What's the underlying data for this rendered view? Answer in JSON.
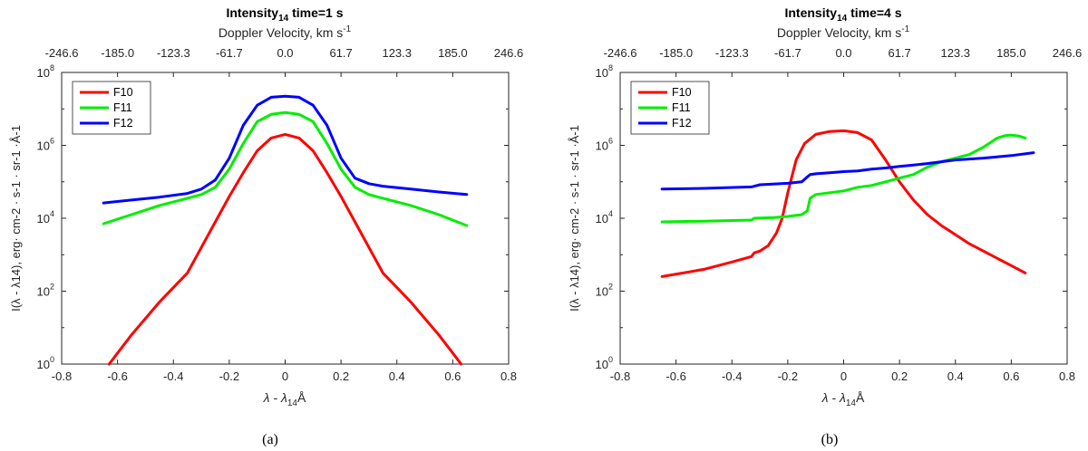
{
  "chart_data": [
    {
      "type": "line",
      "id": "a",
      "title_main": "Intensity",
      "title_sub": "14",
      "title_rest": " time=1 s",
      "top_axis_label": "Doppler Velocity, km s",
      "top_axis_label_exp": "-1",
      "top_ticks": [
        "-246.6",
        "-185.0",
        "-123.3",
        "-61.7",
        "0.0",
        "61.7",
        "123.3",
        "185.0",
        "246.6"
      ],
      "xlabel": "λ - λ",
      "xlabel_sub": "14",
      "xlabel_unit": "Å",
      "ylabel": "I(λ - λ14), erg· cm-2 · s-1 · sr-1 ·Å-1",
      "xlim": [
        -0.8,
        0.8
      ],
      "xticks": [
        "-0.8",
        "-0.6",
        "-0.4",
        "-0.2",
        "0",
        "0.2",
        "0.4",
        "0.6",
        "0.8"
      ],
      "ylim_log10": [
        0,
        8
      ],
      "yticks": [
        "10^0",
        "10^2",
        "10^4",
        "10^6",
        "10^8"
      ],
      "legend": "top-left",
      "caption": "(a)",
      "series": [
        {
          "name": "F10",
          "color": "#ff0000",
          "x": [
            -0.63,
            -0.55,
            -0.45,
            -0.35,
            -0.3,
            -0.25,
            -0.2,
            -0.15,
            -0.1,
            -0.05,
            0,
            0.05,
            0.1,
            0.15,
            0.2,
            0.25,
            0.3,
            0.35,
            0.45,
            0.55,
            0.63
          ],
          "y": [
            0,
            0.8,
            1.7,
            2.5,
            3.2,
            3.9,
            4.6,
            5.25,
            5.85,
            6.2,
            6.3,
            6.2,
            5.85,
            5.25,
            4.6,
            3.9,
            3.2,
            2.5,
            1.7,
            0.8,
            0
          ]
        },
        {
          "name": "F11",
          "color": "#00ee00",
          "x": [
            -0.65,
            -0.55,
            -0.45,
            -0.35,
            -0.3,
            -0.25,
            -0.2,
            -0.15,
            -0.1,
            -0.05,
            0,
            0.05,
            0.1,
            0.15,
            0.2,
            0.25,
            0.3,
            0.35,
            0.45,
            0.55,
            0.65
          ],
          "y": [
            3.85,
            4.1,
            4.35,
            4.55,
            4.65,
            4.85,
            5.35,
            6.05,
            6.65,
            6.85,
            6.9,
            6.85,
            6.65,
            6.05,
            5.35,
            4.85,
            4.65,
            4.55,
            4.35,
            4.1,
            3.8
          ]
        },
        {
          "name": "F12",
          "color": "#0000ff",
          "x": [
            -0.65,
            -0.55,
            -0.45,
            -0.35,
            -0.3,
            -0.25,
            -0.2,
            -0.15,
            -0.1,
            -0.05,
            0,
            0.05,
            0.1,
            0.15,
            0.2,
            0.25,
            0.3,
            0.35,
            0.45,
            0.55,
            0.65
          ],
          "y": [
            4.42,
            4.5,
            4.58,
            4.68,
            4.8,
            5.05,
            5.65,
            6.55,
            7.1,
            7.32,
            7.35,
            7.32,
            7.1,
            6.55,
            5.65,
            5.1,
            4.95,
            4.88,
            4.8,
            4.72,
            4.65
          ]
        }
      ]
    },
    {
      "type": "line",
      "id": "b",
      "title_main": "Intensity",
      "title_sub": "14",
      "title_rest": " time=4 s",
      "top_axis_label": "Doppler Velocity, km s",
      "top_axis_label_exp": "-1",
      "top_ticks": [
        "-246.6",
        "-185.0",
        "-123.3",
        "-61.7",
        "0.0",
        "61.7",
        "123.3",
        "185.0",
        "246.6"
      ],
      "xlabel": "λ - λ",
      "xlabel_sub": "14",
      "xlabel_unit": "Å",
      "ylabel": "I(λ - λ14), erg· cm-2 · s-1 · sr-1 ·Å-1",
      "xlim": [
        -0.8,
        0.8
      ],
      "xticks": [
        "-0.8",
        "-0.6",
        "-0.4",
        "-0.2",
        "0",
        "0.2",
        "0.4",
        "0.6",
        "0.8"
      ],
      "ylim_log10": [
        0,
        8
      ],
      "yticks": [
        "10^0",
        "10^2",
        "10^4",
        "10^6",
        "10^8"
      ],
      "legend": "top-left",
      "caption": "(b)",
      "series": [
        {
          "name": "F10",
          "color": "#ff0000",
          "x": [
            -0.65,
            -0.5,
            -0.4,
            -0.33,
            -0.32,
            -0.3,
            -0.27,
            -0.24,
            -0.22,
            -0.2,
            -0.17,
            -0.14,
            -0.1,
            -0.05,
            0,
            0.05,
            0.1,
            0.15,
            0.2,
            0.25,
            0.3,
            0.35,
            0.4,
            0.45,
            0.5,
            0.55,
            0.6,
            0.65
          ],
          "y": [
            2.4,
            2.6,
            2.8,
            2.95,
            3.05,
            3.1,
            3.25,
            3.6,
            4.0,
            4.7,
            5.6,
            6.05,
            6.3,
            6.38,
            6.4,
            6.35,
            6.15,
            5.6,
            5.0,
            4.5,
            4.1,
            3.8,
            3.55,
            3.3,
            3.1,
            2.9,
            2.7,
            2.5
          ]
        },
        {
          "name": "F11",
          "color": "#00ee00",
          "x": [
            -0.65,
            -0.5,
            -0.33,
            -0.32,
            -0.25,
            -0.2,
            -0.15,
            -0.13,
            -0.12,
            -0.1,
            -0.05,
            0,
            0.05,
            0.1,
            0.15,
            0.2,
            0.25,
            0.3,
            0.35,
            0.4,
            0.45,
            0.5,
            0.55,
            0.58,
            0.6,
            0.63,
            0.65
          ],
          "y": [
            3.9,
            3.92,
            3.95,
            4.0,
            4.02,
            4.05,
            4.1,
            4.2,
            4.55,
            4.65,
            4.7,
            4.75,
            4.85,
            4.9,
            5.0,
            5.1,
            5.2,
            5.4,
            5.55,
            5.65,
            5.75,
            5.95,
            6.2,
            6.27,
            6.28,
            6.25,
            6.2
          ]
        },
        {
          "name": "F12",
          "color": "#0000ff",
          "x": [
            -0.65,
            -0.5,
            -0.33,
            -0.3,
            -0.2,
            -0.15,
            -0.12,
            -0.1,
            -0.05,
            0,
            0.05,
            0.1,
            0.15,
            0.2,
            0.25,
            0.3,
            0.35,
            0.4,
            0.5,
            0.6,
            0.68
          ],
          "y": [
            4.8,
            4.82,
            4.86,
            4.92,
            4.96,
            5.0,
            5.2,
            5.22,
            5.25,
            5.28,
            5.3,
            5.35,
            5.38,
            5.42,
            5.46,
            5.5,
            5.55,
            5.6,
            5.65,
            5.72,
            5.8
          ]
        }
      ]
    }
  ]
}
